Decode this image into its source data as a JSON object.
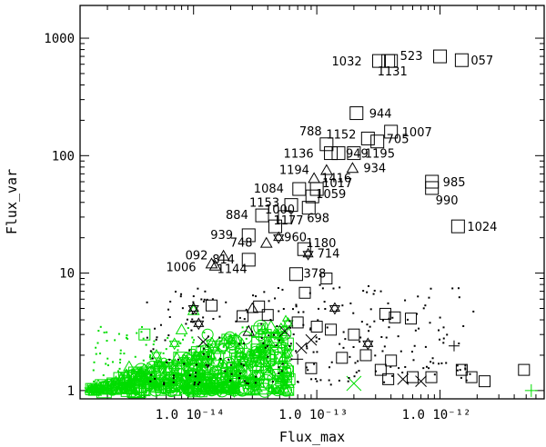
{
  "chart_data": {
    "type": "scatter",
    "xlabel": "Flux_max",
    "ylabel": "Flux_var",
    "xscale": "log",
    "yscale": "log",
    "xlim": [
      1.2e-15,
      7e-12
    ],
    "ylim": [
      0.85,
      1900
    ],
    "x_tick_labels": [
      {
        "value": 1e-14,
        "label": "1.0 10⁻¹⁴"
      },
      {
        "value": 1e-13,
        "label": "1.0 10⁻¹³"
      },
      {
        "value": 1e-12,
        "label": "1.0 10⁻¹²"
      }
    ],
    "y_tick_labels": [
      {
        "value": 1,
        "label": "1"
      },
      {
        "value": 10,
        "label": "10"
      },
      {
        "value": 100,
        "label": "100"
      },
      {
        "value": 1000,
        "label": "1000"
      }
    ],
    "colors": {
      "dark": "#000000",
      "light": "#00dd00"
    },
    "labeled_points": [
      {
        "id": "1032",
        "x": 3.2e-13,
        "y": 640,
        "marker": "square"
      },
      {
        "id": "523",
        "x": 4e-13,
        "y": 640,
        "marker": "square"
      },
      {
        "id": "1131",
        "x": 3.8e-13,
        "y": 640,
        "marker": "square"
      },
      {
        "id": "057",
        "x": 1.5e-12,
        "y": 650,
        "marker": "square"
      },
      {
        "id": "",
        "x": 1e-12,
        "y": 700,
        "marker": "square"
      },
      {
        "id": "944",
        "x": 2.1e-13,
        "y": 230,
        "marker": "square"
      },
      {
        "id": "1007",
        "x": 4e-13,
        "y": 160,
        "marker": "square"
      },
      {
        "id": "1152",
        "x": 2.6e-13,
        "y": 140,
        "marker": "square"
      },
      {
        "id": "788",
        "x": 1.2e-13,
        "y": 125,
        "marker": "square"
      },
      {
        "id": "705",
        "x": 3.1e-13,
        "y": 132,
        "marker": "square"
      },
      {
        "id": "1136",
        "x": 1.3e-13,
        "y": 105,
        "marker": "square"
      },
      {
        "id": "949",
        "x": 1.5e-13,
        "y": 105,
        "marker": "square"
      },
      {
        "id": "1195",
        "x": 2e-13,
        "y": 105,
        "marker": "square"
      },
      {
        "id": "1194",
        "x": 1.2e-13,
        "y": 75,
        "marker": "triangle"
      },
      {
        "id": "934",
        "x": 1.95e-13,
        "y": 78,
        "marker": "triangle"
      },
      {
        "id": "1416",
        "x": 9.5e-14,
        "y": 64,
        "marker": "triangle"
      },
      {
        "id": "985",
        "x": 8.6e-13,
        "y": 60,
        "marker": "square"
      },
      {
        "id": "990",
        "x": 8.6e-13,
        "y": 53,
        "marker": "square"
      },
      {
        "id": "1084",
        "x": 7.2e-14,
        "y": 52,
        "marker": "square"
      },
      {
        "id": "1017",
        "x": 1e-13,
        "y": 52,
        "marker": "square"
      },
      {
        "id": "1059",
        "x": 9.2e-14,
        "y": 45,
        "marker": "square"
      },
      {
        "id": "1153",
        "x": 6.2e-14,
        "y": 38,
        "marker": "square"
      },
      {
        "id": "698",
        "x": 8.6e-14,
        "y": 36,
        "marker": "square"
      },
      {
        "id": "884",
        "x": 3.6e-14,
        "y": 31,
        "marker": "square"
      },
      {
        "id": "1000",
        "x": 5.5e-14,
        "y": 30,
        "marker": "square"
      },
      {
        "id": "1177",
        "x": 4.6e-14,
        "y": 25,
        "marker": "square"
      },
      {
        "id": "1024",
        "x": 1.4e-12,
        "y": 25,
        "marker": "square"
      },
      {
        "id": "939",
        "x": 2.8e-14,
        "y": 21,
        "marker": "square"
      },
      {
        "id": "960",
        "x": 4.9e-14,
        "y": 20,
        "marker": "hexagram"
      },
      {
        "id": "748",
        "x": 3.9e-14,
        "y": 18,
        "marker": "triangle"
      },
      {
        "id": "1180",
        "x": 7.9e-14,
        "y": 16,
        "marker": "square"
      },
      {
        "id": "092",
        "x": 1.75e-14,
        "y": 14,
        "marker": "triangle"
      },
      {
        "id": "714",
        "x": 8.5e-14,
        "y": 14.5,
        "marker": "hexagram"
      },
      {
        "id": "814",
        "x": 2.8e-14,
        "y": 13,
        "marker": "square"
      },
      {
        "id": "1006",
        "x": 1.4e-14,
        "y": 12,
        "marker": "triangle"
      },
      {
        "id": "1144",
        "x": 1.5e-14,
        "y": 11.5,
        "marker": "triangle"
      },
      {
        "id": "378",
        "x": 6.8e-14,
        "y": 9.8,
        "marker": "square"
      }
    ],
    "extra_black_markers": [
      {
        "x": 1.2e-13,
        "y": 9,
        "marker": "square"
      },
      {
        "x": 8e-14,
        "y": 6.8,
        "marker": "square"
      },
      {
        "x": 1.4e-13,
        "y": 5.0,
        "marker": "hexagram"
      },
      {
        "x": 7e-14,
        "y": 3.8,
        "marker": "square"
      },
      {
        "x": 7.5e-14,
        "y": 2.3,
        "marker": "x"
      },
      {
        "x": 9e-14,
        "y": 2.7,
        "marker": "x"
      },
      {
        "x": 5.5e-14,
        "y": 3.2,
        "marker": "x"
      },
      {
        "x": 7e-14,
        "y": 1.85,
        "marker": "plus"
      },
      {
        "x": 9e-14,
        "y": 1.55,
        "marker": "square"
      },
      {
        "x": 1e-13,
        "y": 3.5,
        "marker": "square"
      },
      {
        "x": 1.3e-13,
        "y": 3.3,
        "marker": "square"
      },
      {
        "x": 2e-13,
        "y": 3.0,
        "marker": "square"
      },
      {
        "x": 3.6e-13,
        "y": 4.5,
        "marker": "square"
      },
      {
        "x": 4.3e-13,
        "y": 4.2,
        "marker": "square"
      },
      {
        "x": 5.8e-13,
        "y": 4.1,
        "marker": "square"
      },
      {
        "x": 2.5e-13,
        "y": 2.0,
        "marker": "square"
      },
      {
        "x": 3.3e-13,
        "y": 1.5,
        "marker": "square"
      },
      {
        "x": 4e-13,
        "y": 1.8,
        "marker": "square"
      },
      {
        "x": 3.8e-13,
        "y": 1.25,
        "marker": "square"
      },
      {
        "x": 6e-13,
        "y": 1.3,
        "marker": "square"
      },
      {
        "x": 8.5e-13,
        "y": 1.3,
        "marker": "square"
      },
      {
        "x": 1.5e-12,
        "y": 1.5,
        "marker": "square"
      },
      {
        "x": 2.3e-12,
        "y": 1.2,
        "marker": "square"
      },
      {
        "x": 4.8e-12,
        "y": 1.5,
        "marker": "square"
      },
      {
        "x": 1.6e-13,
        "y": 1.9,
        "marker": "square"
      },
      {
        "x": 1.8e-12,
        "y": 1.3,
        "marker": "square"
      },
      {
        "x": 1.3e-12,
        "y": 2.4,
        "marker": "plus"
      },
      {
        "x": 5e-13,
        "y": 1.25,
        "marker": "x"
      },
      {
        "x": 7e-13,
        "y": 1.2,
        "marker": "x"
      },
      {
        "x": 2.6e-13,
        "y": 2.5,
        "marker": "hexagram"
      },
      {
        "x": 3e-14,
        "y": 5.0,
        "marker": "triangle"
      },
      {
        "x": 3.4e-14,
        "y": 5.2,
        "marker": "square"
      },
      {
        "x": 1.4e-14,
        "y": 5.3,
        "marker": "square"
      },
      {
        "x": 1e-14,
        "y": 5.0,
        "marker": "hexagram"
      },
      {
        "x": 1.1e-14,
        "y": 3.7,
        "marker": "hexagram"
      },
      {
        "x": 1.2e-14,
        "y": 2.6,
        "marker": "x"
      },
      {
        "x": 2.8e-14,
        "y": 3.2,
        "marker": "triangle"
      },
      {
        "x": 4e-14,
        "y": 4.4,
        "marker": "square"
      },
      {
        "x": 2.5e-14,
        "y": 4.3,
        "marker": "square"
      }
    ],
    "green_markers": [
      {
        "x": 3e-15,
        "y": 1.6,
        "marker": "triangle"
      },
      {
        "x": 5e-15,
        "y": 2.0,
        "marker": "hexagram"
      },
      {
        "x": 7e-15,
        "y": 2.5,
        "marker": "hexagram"
      },
      {
        "x": 8e-15,
        "y": 3.3,
        "marker": "triangle"
      },
      {
        "x": 4e-15,
        "y": 3.0,
        "marker": "square"
      },
      {
        "x": 1e-14,
        "y": 4.8,
        "marker": "triangle"
      },
      {
        "x": 1.5e-14,
        "y": 2.0,
        "marker": "circle"
      },
      {
        "x": 2.5e-14,
        "y": 1.6,
        "marker": "circle"
      },
      {
        "x": 3e-14,
        "y": 1.7,
        "marker": "hexagram"
      },
      {
        "x": 2e-14,
        "y": 1.3,
        "marker": "square"
      },
      {
        "x": 4e-14,
        "y": 1.5,
        "marker": "x"
      },
      {
        "x": 2e-13,
        "y": 1.15,
        "marker": "x"
      },
      {
        "x": 5.5e-12,
        "y": 1.0,
        "marker": "plus"
      },
      {
        "x": 6e-15,
        "y": 1.2,
        "marker": "circle"
      },
      {
        "x": 1.1e-14,
        "y": 1.4,
        "marker": "circle"
      },
      {
        "x": 1.8e-14,
        "y": 2.7,
        "marker": "triangle"
      },
      {
        "x": 3.5e-15,
        "y": 1.3,
        "marker": "triangle"
      },
      {
        "x": 2.2e-15,
        "y": 1.15,
        "marker": "square"
      },
      {
        "x": 8.5e-15,
        "y": 1.1,
        "marker": "hexagram"
      },
      {
        "x": 1.3e-14,
        "y": 3.0,
        "marker": "circle"
      },
      {
        "x": 5e-14,
        "y": 1.9,
        "marker": "square"
      },
      {
        "x": 6e-14,
        "y": 1.25,
        "marker": "square"
      }
    ]
  }
}
